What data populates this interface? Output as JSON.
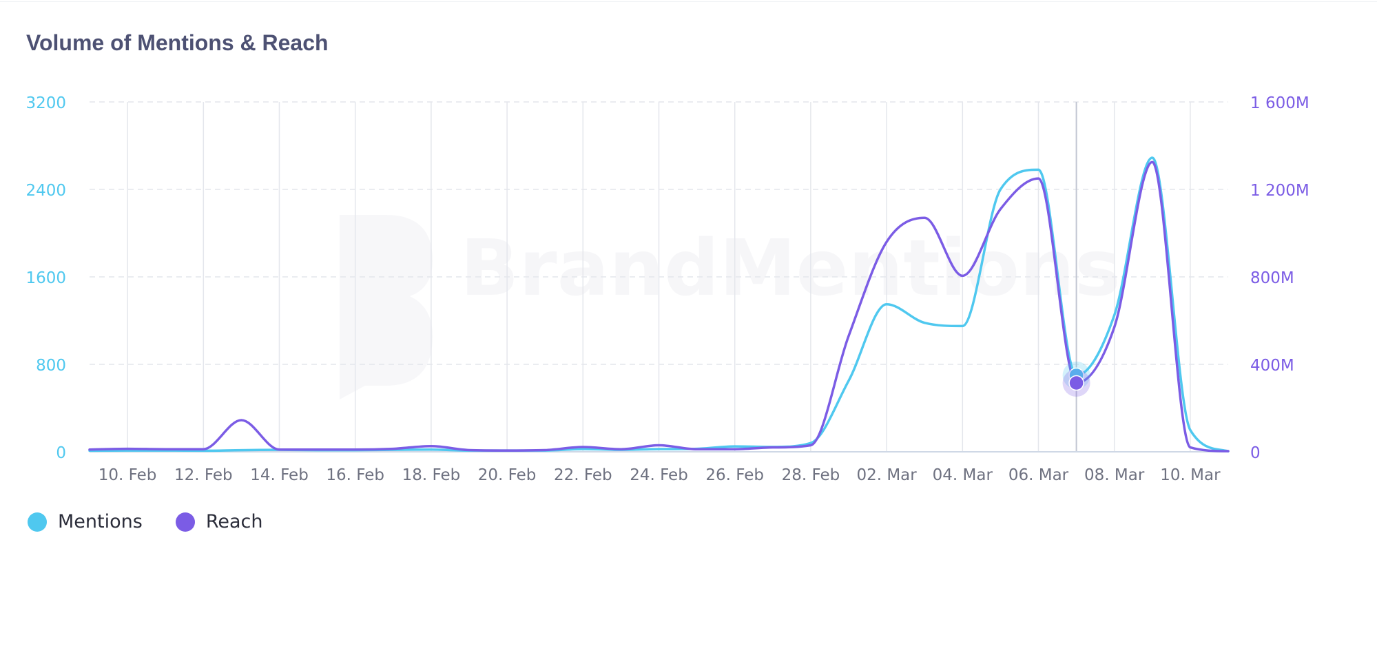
{
  "chart_data": {
    "type": "line",
    "title": "Volume of Mentions & Reach",
    "xlabel": "",
    "ylabel": "",
    "x": [
      "09. Feb",
      "10. Feb",
      "11. Feb",
      "12. Feb",
      "13. Feb",
      "14. Feb",
      "15. Feb",
      "16. Feb",
      "17. Feb",
      "18. Feb",
      "19. Feb",
      "20. Feb",
      "21. Feb",
      "22. Feb",
      "23. Feb",
      "24. Feb",
      "25. Feb",
      "26. Feb",
      "27. Feb",
      "28. Feb",
      "01. Mar",
      "02. Mar",
      "03. Mar",
      "04. Mar",
      "05. Mar",
      "06. Mar",
      "07. Mar",
      "08. Mar",
      "09. Mar",
      "10. Mar",
      "11. Mar"
    ],
    "x_tick_labels": [
      "10. Feb",
      "12. Feb",
      "14. Feb",
      "16. Feb",
      "18. Feb",
      "20. Feb",
      "22. Feb",
      "24. Feb",
      "26. Feb",
      "28. Feb",
      "02. Mar",
      "04. Mar",
      "06. Mar",
      "08. Mar",
      "10. Mar"
    ],
    "y_left": {
      "min": 0,
      "max": 3200,
      "ticks": [
        "0",
        "800",
        "1600",
        "2400",
        "3200"
      ]
    },
    "y_right": {
      "min": 0,
      "max": 1600,
      "unit": "M",
      "ticks": [
        "0",
        "400M",
        "800M",
        "1 200M",
        "1 600M"
      ]
    },
    "grid": {
      "horizontal": "dashed",
      "vertical": "solid"
    },
    "legend_position": "bottom-left",
    "series": [
      {
        "name": "Mentions",
        "axis": "left",
        "color": "#4fc8ef",
        "values": [
          10,
          12,
          12,
          10,
          15,
          18,
          15,
          15,
          18,
          20,
          12,
          12,
          12,
          25,
          18,
          25,
          28,
          50,
          45,
          80,
          650,
          1350,
          1180,
          1150,
          2400,
          2580,
          700,
          1250,
          2690,
          200,
          5
        ]
      },
      {
        "name": "Reach",
        "axis": "right",
        "color": "#7b5ce5",
        "values": [
          10,
          14,
          12,
          12,
          145,
          10,
          10,
          10,
          14,
          26,
          8,
          6,
          8,
          22,
          12,
          30,
          12,
          12,
          20,
          30,
          530,
          960,
          1070,
          805,
          1110,
          1250,
          315,
          570,
          1325,
          20,
          3
        ]
      }
    ],
    "highlighted_point": {
      "x": "07. Mar",
      "Mentions": 700,
      "Reach": 315
    }
  },
  "watermark": "BrandMentions"
}
